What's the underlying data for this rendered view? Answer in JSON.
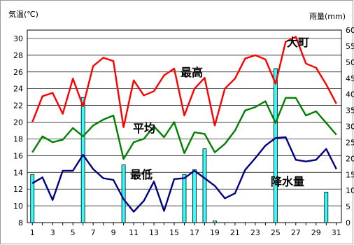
{
  "chart_data": {
    "type": "line+bar",
    "xlabel": "",
    "y_left_label": "気温(℃)",
    "y_right_label": "雨量(mm)",
    "x_ticks": [
      "1",
      "3",
      "5",
      "7",
      "9",
      "11",
      "13",
      "15",
      "17",
      "19",
      "21",
      "23",
      "25",
      "27",
      "29",
      "31"
    ],
    "y_left_ticks": [
      "8",
      "10",
      "12",
      "14",
      "16",
      "18",
      "20",
      "22",
      "24",
      "26",
      "28",
      "30"
    ],
    "y_right_ticks": [
      "0",
      "5",
      "10",
      "15",
      "20",
      "25",
      "30",
      "35",
      "40",
      "45",
      "50",
      "55",
      "60"
    ],
    "y_left_range": [
      8,
      31
    ],
    "y_right_range": [
      0,
      60
    ],
    "x": [
      1,
      2,
      3,
      4,
      5,
      6,
      7,
      8,
      9,
      10,
      11,
      12,
      13,
      14,
      15,
      16,
      17,
      18,
      19,
      20,
      21,
      22,
      23,
      24,
      25,
      26,
      27,
      28,
      29,
      30,
      31
    ],
    "series": [
      {
        "name": "最高",
        "color": "#ff0000",
        "values": [
          20.0,
          23.1,
          23.5,
          21.0,
          25.2,
          21.9,
          26.7,
          27.7,
          27.3,
          19.4,
          25.0,
          23.2,
          23.7,
          25.6,
          26.4,
          20.8,
          24.0,
          25.3,
          19.6,
          24.0,
          25.2,
          27.6,
          28.0,
          27.5,
          24.6,
          29.6,
          30.2,
          27.0,
          26.5,
          24.5,
          22.2
        ]
      },
      {
        "name": "平均",
        "color": "#008000",
        "values": [
          16.4,
          18.3,
          17.6,
          17.9,
          19.3,
          18.3,
          19.6,
          20.3,
          20.8,
          15.6,
          17.6,
          18.0,
          19.5,
          18.2,
          20.0,
          16.3,
          18.8,
          18.6,
          16.4,
          17.4,
          19.0,
          21.4,
          21.8,
          22.5,
          19.9,
          22.9,
          22.9,
          20.8,
          21.3,
          19.9,
          18.5
        ]
      },
      {
        "name": "最低",
        "color": "#000080",
        "values": [
          12.7,
          13.4,
          10.7,
          14.2,
          14.2,
          16.1,
          14.4,
          13.3,
          13.1,
          10.8,
          9.3,
          10.6,
          12.9,
          9.4,
          13.2,
          13.3,
          14.2,
          13.3,
          12.4,
          10.9,
          11.5,
          14.3,
          15.7,
          17.2,
          18.1,
          18.2,
          15.5,
          15.3,
          15.5,
          16.8,
          14.4
        ]
      },
      {
        "name": "降水量",
        "color": "#33ffff",
        "rain_days": [
          1,
          6,
          10,
          16,
          17,
          18,
          19,
          25,
          30
        ],
        "rain_mm": [
          15.0,
          39.0,
          18.0,
          15.0,
          16.5,
          23.0,
          0.5,
          48.0,
          9.5
        ]
      }
    ],
    "annotations": [
      "大町",
      "最高",
      "平均",
      "最低",
      "降水量"
    ],
    "grid": "horizontal"
  }
}
